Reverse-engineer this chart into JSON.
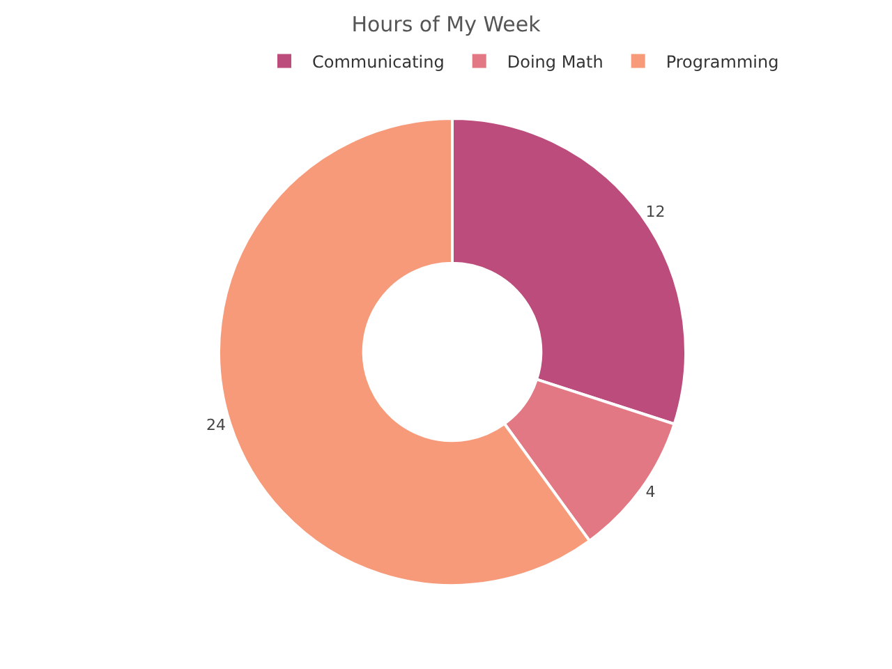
{
  "chart_data": {
    "type": "donut",
    "title": "Hours of My Week",
    "categories": [
      "Communicating",
      "Doing Math",
      "Programming"
    ],
    "values": [
      12,
      4,
      24
    ],
    "colors": [
      "#bc4c7c",
      "#e27884",
      "#f79a7a"
    ],
    "data_labels": true,
    "legend": "top right"
  }
}
